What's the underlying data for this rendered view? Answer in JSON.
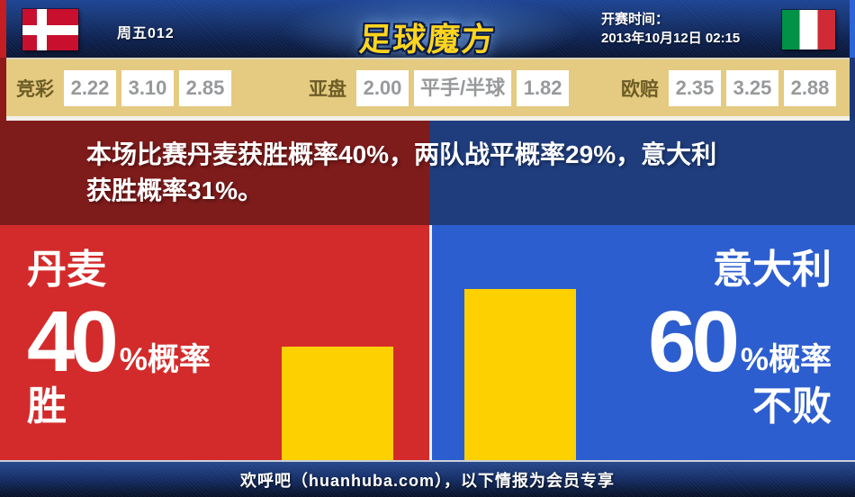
{
  "header": {
    "match_code": "周五012",
    "logo": "足球魔方",
    "kickoff_label": "开赛时间：",
    "kickoff_time": "2013年10月12日 02:15",
    "home_flag": "denmark-flag",
    "away_flag": "italy-flag"
  },
  "odds": {
    "groups": [
      {
        "label": "竞彩",
        "values": [
          "2.22",
          "3.10",
          "2.85"
        ]
      },
      {
        "label": "亚盘",
        "values": [
          "2.00",
          "平手/半球",
          "1.82"
        ]
      },
      {
        "label": "欧赔",
        "values": [
          "2.35",
          "3.25",
          "2.88"
        ]
      }
    ]
  },
  "summary": {
    "line1": "本场比赛丹麦获胜概率40%，两队战平概率29%，意大利",
    "line2": "获胜概率31%。"
  },
  "left": {
    "team": "丹麦",
    "pct": "40",
    "pct_suffix": "%概率",
    "result": "胜",
    "bar_pct": 40
  },
  "right": {
    "team": "意大利",
    "pct": "60",
    "pct_suffix": "%概率",
    "result": "不败",
    "bar_pct": 60
  },
  "footer": {
    "text": "欢呼吧（huanhuba.com），以下情报为会员专享"
  },
  "colors": {
    "bright_red": "#d32b2b",
    "dark_red": "#7e1b1b",
    "bright_blue": "#2d5ecf",
    "dark_blue": "#1f3d7d",
    "bar_yellow": "#fdd002",
    "odds_bar_tan": "#e5cb81",
    "logo_gold": "#ffd41f"
  }
}
